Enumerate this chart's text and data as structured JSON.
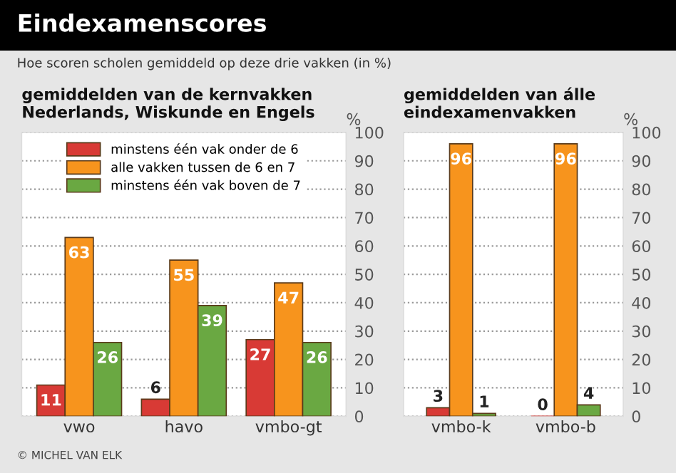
{
  "chart_data": [
    {
      "type": "bar",
      "title": "Eindexamenscores",
      "subtitle": "Hoe scoren scholen gemiddeld op deze drie vakken (in %)",
      "annotations": [
        "gemiddelden van de kernvakken\nNederlands, Wiskunde en Engels",
        "© MICHEL VAN ELK"
      ],
      "ylabel": "%",
      "categories": [
        "vwo",
        "havo",
        "vmbo-gt"
      ],
      "series": [
        {
          "name": "minstens één vak onder de 6",
          "color": "#d83a35",
          "values": [
            11,
            6,
            27
          ]
        },
        {
          "name": "alle vakken tussen de 6 en 7",
          "color": "#f7941d",
          "values": [
            63,
            55,
            47
          ]
        },
        {
          "name": "minstens één vak boven de 7",
          "color": "#6aa842",
          "values": [
            26,
            39,
            26
          ]
        }
      ],
      "ylim": [
        0,
        100
      ],
      "yticks": [
        0,
        10,
        20,
        30,
        40,
        50,
        60,
        70,
        80,
        90,
        100
      ],
      "grid": "y",
      "legend": "top",
      "data_labels": true
    },
    {
      "type": "bar",
      "title": "gemiddelden van álle\neindexamenvakken",
      "ylabel": "%",
      "categories": [
        "vmbo-k",
        "vmbo-b"
      ],
      "series": [
        {
          "color": "#d83a35",
          "values": [
            3,
            0
          ]
        },
        {
          "color": "#f7941d",
          "values": [
            96,
            96
          ]
        },
        {
          "color": "#6aa842",
          "values": [
            1,
            4
          ]
        }
      ],
      "ylim": [
        0,
        100
      ],
      "yticks": [
        0,
        10,
        20,
        30,
        40,
        50,
        60,
        70,
        80,
        90,
        100
      ],
      "grid": "y",
      "data_labels": true
    }
  ]
}
